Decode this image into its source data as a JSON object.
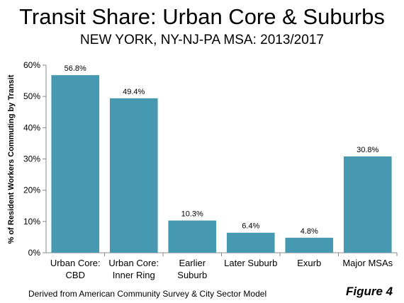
{
  "chart_data": {
    "type": "bar",
    "title": "Transit Share: Urban Core & Suburbs",
    "subtitle": "NEW YORK, NY-NJ-PA MSA: 2013/2017",
    "ylabel": "% of Resident Workers Commuting by Transit",
    "xlabel": "",
    "categories": [
      [
        "Urban Core:",
        "CBD"
      ],
      [
        "Urban Core:",
        "Inner Ring"
      ],
      [
        "Earlier",
        "Suburb"
      ],
      [
        "Later Suburb"
      ],
      [
        "Exurb"
      ],
      [
        "Major MSAs"
      ]
    ],
    "values": [
      56.8,
      49.4,
      10.3,
      6.4,
      4.8,
      30.8
    ],
    "value_labels": [
      "56.8%",
      "49.4%",
      "10.3%",
      "6.4%",
      "4.8%",
      "30.8%"
    ],
    "ylim": [
      0,
      60
    ],
    "yticks": [
      0,
      10,
      20,
      30,
      40,
      50,
      60
    ],
    "ytick_labels": [
      "0%",
      "10%",
      "20%",
      "30%",
      "40%",
      "50%",
      "60%"
    ],
    "grid": false,
    "legend": "none",
    "bar_color": "#4699B0"
  },
  "footnote": "Derived from American Community Survey & City Sector Model",
  "figure_label": "Figure 4"
}
